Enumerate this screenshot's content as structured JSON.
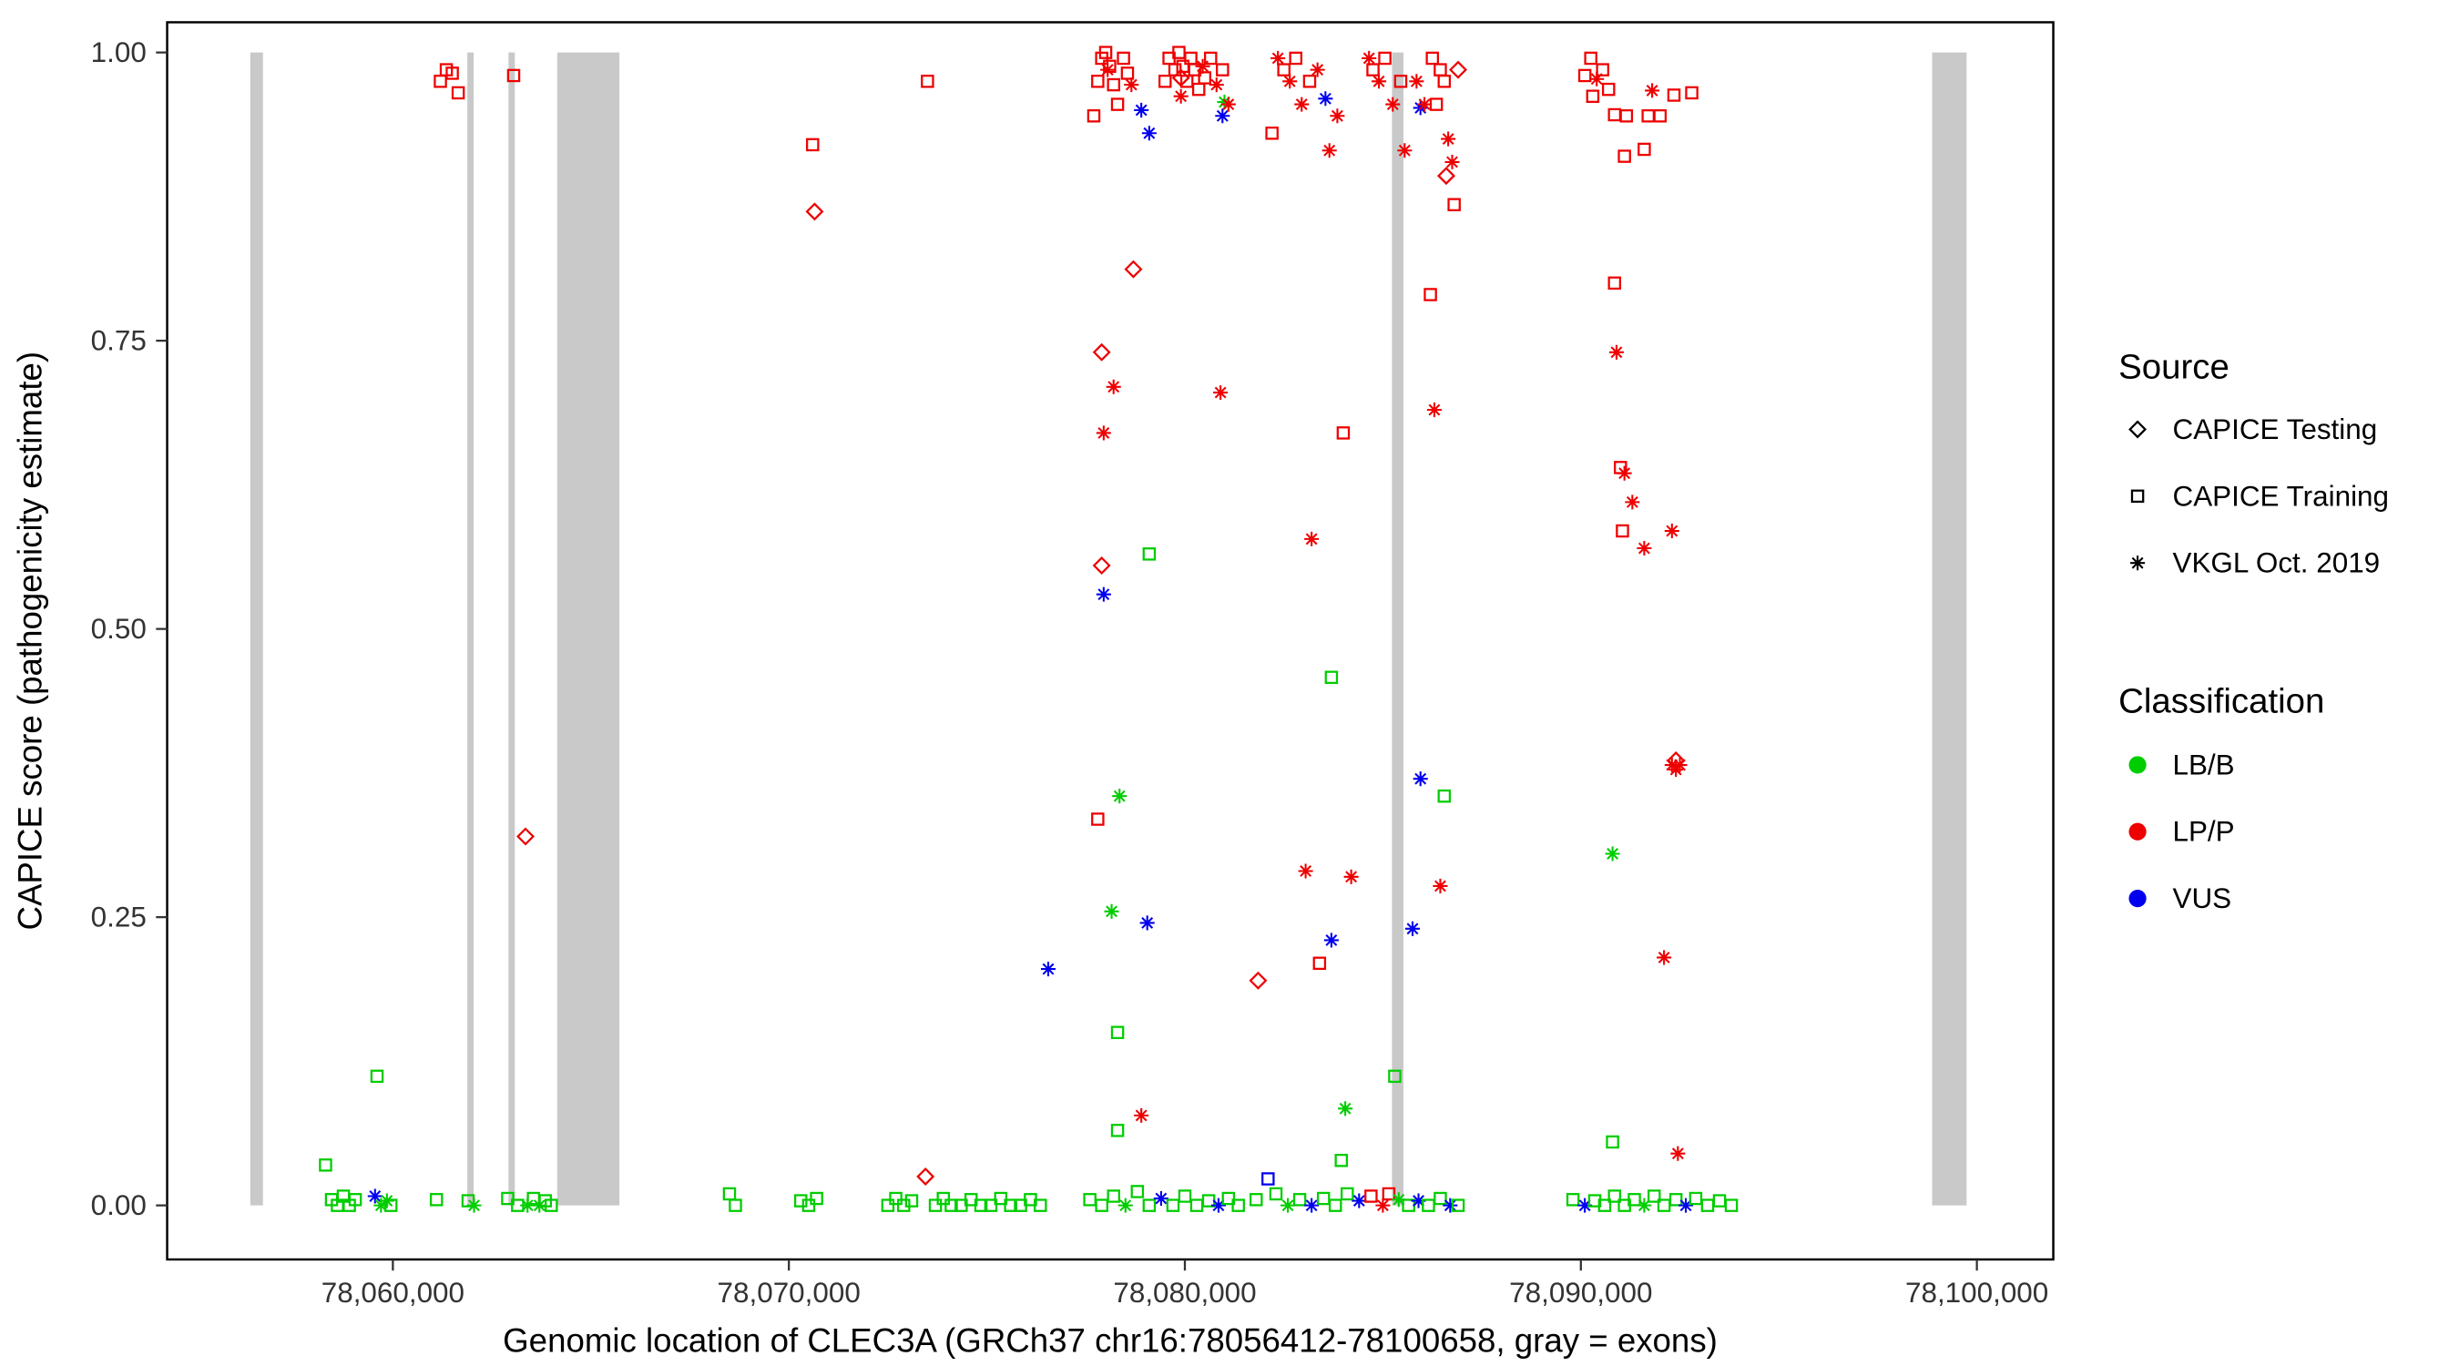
{
  "figure": {
    "xlabel": "Genomic location of CLEC3A (GRCh37 chr16:78056412-78100658, gray = exons)",
    "ylabel": "CAPICE score (pathogenicity estimate)"
  },
  "chart_data": {
    "type": "scatter",
    "title": "",
    "xlabel": "Genomic location of CLEC3A (GRCh37 chr16:78056412-78100658, gray = exons)",
    "ylabel": "CAPICE score (pathogenicity estimate)",
    "xlim": [
      78054300,
      78101930
    ],
    "ylim": [
      -0.047,
      1.026
    ],
    "grid": false,
    "x_ticks": [
      {
        "value": 78060000,
        "label": "78,060,000"
      },
      {
        "value": 78070000,
        "label": "78,070,000"
      },
      {
        "value": 78080000,
        "label": "78,080,000"
      },
      {
        "value": 78090000,
        "label": "78,090,000"
      },
      {
        "value": 78100000,
        "label": "78,100,000"
      }
    ],
    "y_ticks": [
      {
        "value": 0.0,
        "label": "0.00"
      },
      {
        "value": 0.25,
        "label": "0.25"
      },
      {
        "value": 0.5,
        "label": "0.50"
      },
      {
        "value": 0.75,
        "label": "0.75"
      },
      {
        "value": 1.0,
        "label": "1.00"
      }
    ],
    "exon_color": "#C9C9C9",
    "exons": [
      [
        78056400,
        78056720
      ],
      [
        78061880,
        78062040
      ],
      [
        78062920,
        78063080
      ],
      [
        78064150,
        78065720
      ],
      [
        78085230,
        78085520
      ],
      [
        78098870,
        78099740
      ]
    ],
    "colors": {
      "LB": "#00CD00",
      "LP": "#EE0000",
      "VUS": "#0000EE"
    },
    "legend": {
      "source": {
        "title": "Source",
        "items": [
          {
            "label": "CAPICE Testing",
            "shape": "diamond"
          },
          {
            "label": "CAPICE Training",
            "shape": "square"
          },
          {
            "label": "VKGL Oct. 2019",
            "shape": "asterisk"
          }
        ]
      },
      "classification": {
        "title": "Classification",
        "items": [
          {
            "label": "LB/B",
            "color": "#00CD00"
          },
          {
            "label": "LP/P",
            "color": "#EE0000"
          },
          {
            "label": "VUS",
            "color": "#0000EE"
          }
        ]
      }
    },
    "points": [
      [
        78058300,
        0.035,
        "s",
        "LB"
      ],
      [
        78058450,
        0.005,
        "s",
        "LB"
      ],
      [
        78058600,
        0.0,
        "s",
        "LB"
      ],
      [
        78058750,
        0.008,
        "s",
        "LB"
      ],
      [
        78058900,
        0.0,
        "s",
        "LB"
      ],
      [
        78059050,
        0.005,
        "s",
        "LB"
      ],
      [
        78059600,
        0.112,
        "s",
        "LB"
      ],
      [
        78059550,
        0.008,
        "a",
        "VUS"
      ],
      [
        78059700,
        0.0,
        "a",
        "LB"
      ],
      [
        78059850,
        0.004,
        "a",
        "LB"
      ],
      [
        78059950,
        0.0,
        "s",
        "LB"
      ],
      [
        78061200,
        0.975,
        "s",
        "LP"
      ],
      [
        78061350,
        0.985,
        "s",
        "LP"
      ],
      [
        78061500,
        0.982,
        "s",
        "LP"
      ],
      [
        78061650,
        0.965,
        "s",
        "LP"
      ],
      [
        78061100,
        0.005,
        "s",
        "LB"
      ],
      [
        78061900,
        0.004,
        "s",
        "LB"
      ],
      [
        78062050,
        0.0,
        "a",
        "LB"
      ],
      [
        78063050,
        0.98,
        "s",
        "LP"
      ],
      [
        78063350,
        0.32,
        "d",
        "LP"
      ],
      [
        78062900,
        0.006,
        "s",
        "LB"
      ],
      [
        78063150,
        0.0,
        "s",
        "LB"
      ],
      [
        78063400,
        0.0,
        "a",
        "LB"
      ],
      [
        78063550,
        0.006,
        "s",
        "LB"
      ],
      [
        78063700,
        0.0,
        "a",
        "LB"
      ],
      [
        78063850,
        0.004,
        "s",
        "LB"
      ],
      [
        78064000,
        0.0,
        "s",
        "LB"
      ],
      [
        78068500,
        0.01,
        "s",
        "LB"
      ],
      [
        78068650,
        0.0,
        "s",
        "LB"
      ],
      [
        78070300,
        0.004,
        "s",
        "LB"
      ],
      [
        78070500,
        0.0,
        "s",
        "LB"
      ],
      [
        78070700,
        0.006,
        "s",
        "LB"
      ],
      [
        78070600,
        0.92,
        "s",
        "LP"
      ],
      [
        78070650,
        0.862,
        "d",
        "LP"
      ],
      [
        78073500,
        0.975,
        "s",
        "LP"
      ],
      [
        78073450,
        0.025,
        "d",
        "LP"
      ],
      [
        78072500,
        0.0,
        "s",
        "LB"
      ],
      [
        78072700,
        0.006,
        "s",
        "LB"
      ],
      [
        78072900,
        0.0,
        "s",
        "LB"
      ],
      [
        78073100,
        0.004,
        "s",
        "LB"
      ],
      [
        78073700,
        0.0,
        "s",
        "LB"
      ],
      [
        78073900,
        0.006,
        "s",
        "LB"
      ],
      [
        78074100,
        0.0,
        "s",
        "LB"
      ],
      [
        78074350,
        0.0,
        "s",
        "LB"
      ],
      [
        78074600,
        0.005,
        "s",
        "LB"
      ],
      [
        78074850,
        0.0,
        "s",
        "LB"
      ],
      [
        78075100,
        0.0,
        "s",
        "LB"
      ],
      [
        78075350,
        0.006,
        "s",
        "LB"
      ],
      [
        78075600,
        0.0,
        "s",
        "LB"
      ],
      [
        78075850,
        0.0,
        "s",
        "LB"
      ],
      [
        78076100,
        0.005,
        "s",
        "LB"
      ],
      [
        78076350,
        0.0,
        "s",
        "LB"
      ],
      [
        78076550,
        0.205,
        "a",
        "VUS"
      ],
      [
        78077700,
        0.945,
        "s",
        "LP"
      ],
      [
        78077800,
        0.975,
        "s",
        "LP"
      ],
      [
        78077900,
        0.995,
        "s",
        "LP"
      ],
      [
        78078000,
        1.0,
        "s",
        "LP"
      ],
      [
        78078100,
        0.988,
        "s",
        "LP"
      ],
      [
        78078200,
        0.972,
        "s",
        "LP"
      ],
      [
        78078300,
        0.955,
        "s",
        "LP"
      ],
      [
        78078450,
        0.995,
        "s",
        "LP"
      ],
      [
        78078550,
        0.982,
        "s",
        "LP"
      ],
      [
        78078050,
        0.985,
        "a",
        "LP"
      ],
      [
        78078650,
        0.972,
        "a",
        "LP"
      ],
      [
        78078900,
        0.95,
        "a",
        "VUS"
      ],
      [
        78079100,
        0.93,
        "a",
        "VUS"
      ],
      [
        78080950,
        0.945,
        "a",
        "VUS"
      ],
      [
        78081000,
        0.957,
        "a",
        "LB"
      ],
      [
        78079500,
        0.975,
        "s",
        "LP"
      ],
      [
        78079600,
        0.995,
        "s",
        "LP"
      ],
      [
        78079750,
        0.985,
        "s",
        "LP"
      ],
      [
        78079850,
        1.0,
        "s",
        "LP"
      ],
      [
        78079950,
        0.988,
        "s",
        "LP"
      ],
      [
        78080050,
        0.975,
        "s",
        "LP"
      ],
      [
        78080150,
        0.995,
        "s",
        "LP"
      ],
      [
        78080250,
        0.985,
        "s",
        "LP"
      ],
      [
        78080350,
        0.968,
        "s",
        "LP"
      ],
      [
        78080500,
        0.978,
        "s",
        "LP"
      ],
      [
        78080650,
        0.995,
        "s",
        "LP"
      ],
      [
        78080800,
        0.972,
        "a",
        "LP"
      ],
      [
        78080950,
        0.985,
        "s",
        "LP"
      ],
      [
        78081100,
        0.955,
        "a",
        "LP"
      ],
      [
        78079900,
        0.962,
        "a",
        "LP"
      ],
      [
        78080450,
        0.988,
        "a",
        "LP"
      ],
      [
        78079900,
        0.978,
        "d",
        "LP"
      ],
      [
        78078700,
        0.812,
        "d",
        "LP"
      ],
      [
        78077900,
        0.74,
        "d",
        "LP"
      ],
      [
        78078200,
        0.71,
        "a",
        "LP"
      ],
      [
        78077950,
        0.67,
        "a",
        "LP"
      ],
      [
        78077900,
        0.555,
        "d",
        "LP"
      ],
      [
        78077950,
        0.53,
        "a",
        "VUS"
      ],
      [
        78079100,
        0.565,
        "s",
        "LB"
      ],
      [
        78077800,
        0.335,
        "s",
        "LP"
      ],
      [
        78078350,
        0.355,
        "a",
        "LB"
      ],
      [
        78078150,
        0.255,
        "a",
        "LB"
      ],
      [
        78079050,
        0.245,
        "a",
        "VUS"
      ],
      [
        78078300,
        0.15,
        "s",
        "LB"
      ],
      [
        78078300,
        0.065,
        "s",
        "LB"
      ],
      [
        78078900,
        0.078,
        "a",
        "LP"
      ],
      [
        78077600,
        0.005,
        "s",
        "LB"
      ],
      [
        78077900,
        0.0,
        "s",
        "LB"
      ],
      [
        78078200,
        0.008,
        "s",
        "LB"
      ],
      [
        78078500,
        0.0,
        "a",
        "LB"
      ],
      [
        78078800,
        0.012,
        "s",
        "LB"
      ],
      [
        78079100,
        0.0,
        "s",
        "LB"
      ],
      [
        78079400,
        0.006,
        "a",
        "VUS"
      ],
      [
        78079700,
        0.0,
        "s",
        "LB"
      ],
      [
        78080000,
        0.008,
        "s",
        "LB"
      ],
      [
        78080300,
        0.0,
        "s",
        "LB"
      ],
      [
        78080600,
        0.004,
        "s",
        "LB"
      ],
      [
        78080850,
        0.0,
        "a",
        "VUS"
      ],
      [
        78081100,
        0.006,
        "s",
        "LB"
      ],
      [
        78081350,
        0.0,
        "s",
        "LB"
      ],
      [
        78082200,
        0.93,
        "s",
        "LP"
      ],
      [
        78082350,
        0.995,
        "a",
        "LP"
      ],
      [
        78082500,
        0.985,
        "s",
        "LP"
      ],
      [
        78082650,
        0.975,
        "a",
        "LP"
      ],
      [
        78082800,
        0.995,
        "s",
        "LP"
      ],
      [
        78082950,
        0.955,
        "a",
        "LP"
      ],
      [
        78083150,
        0.975,
        "s",
        "LP"
      ],
      [
        78083350,
        0.985,
        "a",
        "LP"
      ],
      [
        78083550,
        0.96,
        "a",
        "VUS"
      ],
      [
        78083650,
        0.915,
        "a",
        "LP"
      ],
      [
        78083850,
        0.945,
        "a",
        "LP"
      ],
      [
        78084650,
        0.995,
        "a",
        "LP"
      ],
      [
        78084750,
        0.985,
        "s",
        "LP"
      ],
      [
        78084900,
        0.975,
        "a",
        "LP"
      ],
      [
        78085050,
        0.995,
        "s",
        "LP"
      ],
      [
        78085250,
        0.955,
        "a",
        "LP"
      ],
      [
        78085450,
        0.975,
        "s",
        "LP"
      ],
      [
        78085550,
        0.915,
        "a",
        "LP"
      ],
      [
        78085850,
        0.975,
        "a",
        "LP"
      ],
      [
        78085950,
        0.952,
        "a",
        "VUS"
      ],
      [
        78086050,
        0.955,
        "a",
        "LP"
      ],
      [
        78086250,
        0.995,
        "s",
        "LP"
      ],
      [
        78086350,
        0.955,
        "s",
        "LP"
      ],
      [
        78086450,
        0.985,
        "s",
        "LP"
      ],
      [
        78086550,
        0.975,
        "s",
        "LP"
      ],
      [
        78086650,
        0.925,
        "a",
        "LP"
      ],
      [
        78086750,
        0.905,
        "a",
        "LP"
      ],
      [
        78086900,
        0.985,
        "d",
        "LP"
      ],
      [
        78086600,
        0.893,
        "d",
        "LP"
      ],
      [
        78086800,
        0.868,
        "s",
        "LP"
      ],
      [
        78086200,
        0.79,
        "s",
        "LP"
      ],
      [
        78086300,
        0.69,
        "a",
        "LP"
      ],
      [
        78084000,
        0.67,
        "s",
        "LP"
      ],
      [
        78080900,
        0.705,
        "a",
        "LP"
      ],
      [
        78083200,
        0.578,
        "a",
        "LP"
      ],
      [
        78083700,
        0.458,
        "s",
        "LB"
      ],
      [
        78083050,
        0.29,
        "a",
        "LP"
      ],
      [
        78084200,
        0.285,
        "a",
        "LP"
      ],
      [
        78083700,
        0.23,
        "a",
        "VUS"
      ],
      [
        78083400,
        0.21,
        "s",
        "LP"
      ],
      [
        78081850,
        0.195,
        "d",
        "LP"
      ],
      [
        78085750,
        0.24,
        "a",
        "VUS"
      ],
      [
        78085950,
        0.37,
        "a",
        "VUS"
      ],
      [
        78086550,
        0.355,
        "s",
        "LB"
      ],
      [
        78086450,
        0.277,
        "a",
        "LP"
      ],
      [
        78085300,
        0.112,
        "s",
        "LB"
      ],
      [
        78084050,
        0.084,
        "a",
        "LB"
      ],
      [
        78083950,
        0.039,
        "s",
        "LB"
      ],
      [
        78081800,
        0.005,
        "s",
        "LB"
      ],
      [
        78082100,
        0.023,
        "s",
        "VUS"
      ],
      [
        78082300,
        0.01,
        "s",
        "LB"
      ],
      [
        78082600,
        0.0,
        "a",
        "LB"
      ],
      [
        78082900,
        0.005,
        "s",
        "LB"
      ],
      [
        78083200,
        0.0,
        "a",
        "VUS"
      ],
      [
        78083500,
        0.006,
        "s",
        "LB"
      ],
      [
        78083800,
        0.0,
        "s",
        "LB"
      ],
      [
        78084100,
        0.01,
        "s",
        "LB"
      ],
      [
        78084400,
        0.004,
        "a",
        "VUS"
      ],
      [
        78084700,
        0.008,
        "s",
        "LP"
      ],
      [
        78085000,
        0.0,
        "a",
        "LP"
      ],
      [
        78085150,
        0.01,
        "s",
        "LP"
      ],
      [
        78085400,
        0.005,
        "a",
        "LB"
      ],
      [
        78085650,
        0.0,
        "s",
        "LB"
      ],
      [
        78085900,
        0.004,
        "a",
        "VUS"
      ],
      [
        78086150,
        0.0,
        "s",
        "LB"
      ],
      [
        78086450,
        0.006,
        "s",
        "LB"
      ],
      [
        78086700,
        0.0,
        "a",
        "VUS"
      ],
      [
        78086900,
        0.0,
        "s",
        "LB"
      ],
      [
        78090100,
        0.98,
        "s",
        "LP"
      ],
      [
        78090250,
        0.995,
        "s",
        "LP"
      ],
      [
        78090400,
        0.977,
        "a",
        "LP"
      ],
      [
        78090550,
        0.985,
        "s",
        "LP"
      ],
      [
        78090700,
        0.968,
        "s",
        "LP"
      ],
      [
        78090850,
        0.946,
        "s",
        "LP"
      ],
      [
        78090300,
        0.962,
        "s",
        "LP"
      ],
      [
        78091100,
        0.91,
        "s",
        "LP"
      ],
      [
        78091600,
        0.916,
        "s",
        "LP"
      ],
      [
        78091150,
        0.945,
        "s",
        "LP"
      ],
      [
        78091700,
        0.945,
        "s",
        "LP"
      ],
      [
        78092000,
        0.945,
        "s",
        "LP"
      ],
      [
        78091800,
        0.967,
        "a",
        "LP"
      ],
      [
        78092350,
        0.963,
        "s",
        "LP"
      ],
      [
        78092800,
        0.965,
        "s",
        "LP"
      ],
      [
        78090850,
        0.8,
        "s",
        "LP"
      ],
      [
        78090900,
        0.74,
        "a",
        "LP"
      ],
      [
        78091000,
        0.64,
        "s",
        "LP"
      ],
      [
        78091100,
        0.635,
        "a",
        "LP"
      ],
      [
        78091300,
        0.61,
        "a",
        "LP"
      ],
      [
        78091050,
        0.585,
        "s",
        "LP"
      ],
      [
        78091600,
        0.57,
        "a",
        "LP"
      ],
      [
        78092300,
        0.585,
        "a",
        "LP"
      ],
      [
        78092300,
        0.382,
        "a",
        "LP"
      ],
      [
        78092400,
        0.378,
        "a",
        "LP"
      ],
      [
        78092500,
        0.382,
        "a",
        "LP"
      ],
      [
        78092400,
        0.386,
        "d",
        "LP"
      ],
      [
        78090800,
        0.305,
        "a",
        "LB"
      ],
      [
        78092100,
        0.215,
        "a",
        "LP"
      ],
      [
        78090800,
        0.055,
        "s",
        "LB"
      ],
      [
        78092450,
        0.045,
        "a",
        "LP"
      ],
      [
        78089800,
        0.005,
        "s",
        "LB"
      ],
      [
        78090100,
        0.0,
        "a",
        "VUS"
      ],
      [
        78090350,
        0.004,
        "s",
        "LB"
      ],
      [
        78090600,
        0.0,
        "s",
        "LB"
      ],
      [
        78090850,
        0.008,
        "s",
        "LB"
      ],
      [
        78091100,
        0.0,
        "s",
        "LB"
      ],
      [
        78091350,
        0.005,
        "s",
        "LB"
      ],
      [
        78091600,
        0.0,
        "a",
        "LB"
      ],
      [
        78091850,
        0.008,
        "s",
        "LB"
      ],
      [
        78092100,
        0.0,
        "s",
        "LB"
      ],
      [
        78092400,
        0.005,
        "s",
        "LB"
      ],
      [
        78092650,
        0.0,
        "a",
        "VUS"
      ],
      [
        78092900,
        0.006,
        "s",
        "LB"
      ],
      [
        78093200,
        0.0,
        "s",
        "LB"
      ],
      [
        78093500,
        0.004,
        "s",
        "LB"
      ],
      [
        78093800,
        0.0,
        "s",
        "LB"
      ]
    ]
  }
}
